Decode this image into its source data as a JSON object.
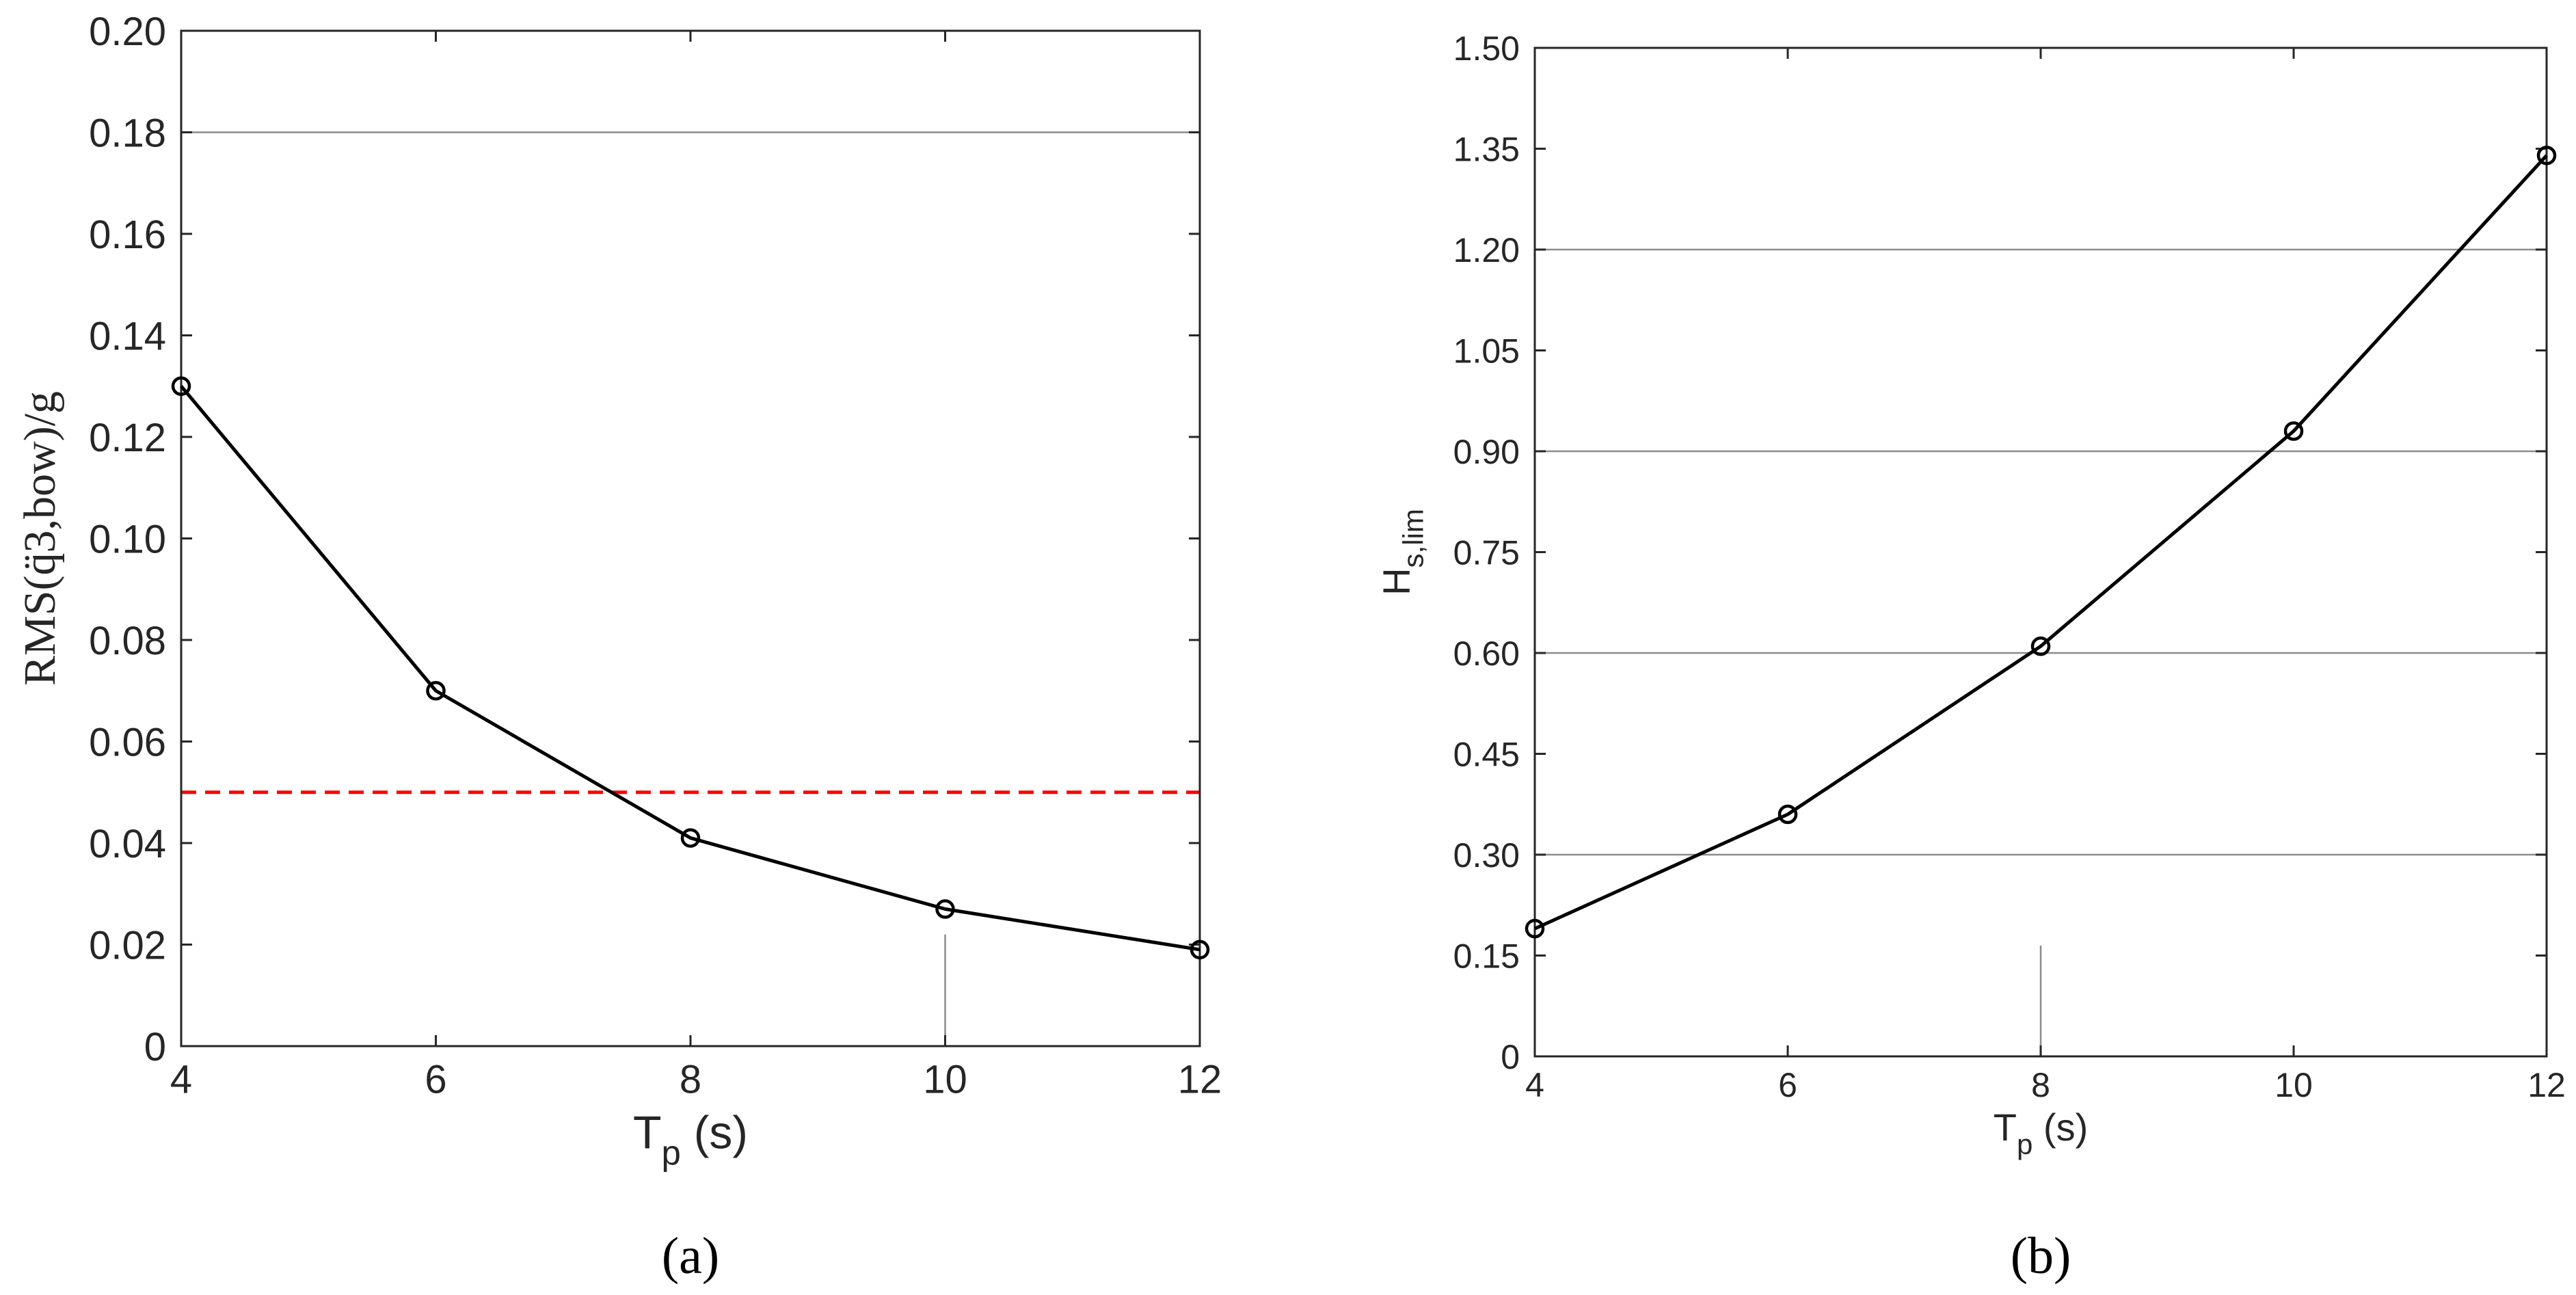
{
  "chart_data": [
    {
      "type": "line",
      "panel_label": "(a)",
      "xlabel_main": "T",
      "xlabel_sub": "p",
      "xlabel_unit": " (s)",
      "ylabel": "RMS(q̈3,bow)/g",
      "xlim": [
        4,
        12
      ],
      "ylim": [
        0,
        0.2
      ],
      "xticks": [
        "4",
        "6",
        "8",
        "10",
        "12"
      ],
      "yticks": [
        "0",
        "0.02",
        "0.04",
        "0.06",
        "0.08",
        "0.10",
        "0.12",
        "0.14",
        "0.16",
        "0.18",
        "0.20"
      ],
      "x": [
        4,
        6,
        8,
        10,
        12
      ],
      "values": [
        0.13,
        0.07,
        0.041,
        0.027,
        0.019
      ],
      "threshold": 0.05,
      "threshold_color": "#ff0000",
      "line_color": "#000000",
      "marker": "circle-open",
      "grid": "partial"
    },
    {
      "type": "line",
      "panel_label": "(b)",
      "xlabel_main": "T",
      "xlabel_sub": "p",
      "xlabel_unit": " (s)",
      "ylabel_main": "H",
      "ylabel_sub": "s,lim",
      "xlim": [
        4,
        12
      ],
      "ylim": [
        0,
        1.5
      ],
      "xticks": [
        "4",
        "6",
        "8",
        "10",
        "12"
      ],
      "yticks": [
        "0",
        "0.15",
        "0.30",
        "0.45",
        "0.60",
        "0.75",
        "0.90",
        "1.05",
        "1.20",
        "1.35",
        "1.50"
      ],
      "x": [
        4,
        6,
        8,
        10,
        12
      ],
      "values": [
        0.19,
        0.36,
        0.61,
        0.93,
        1.34
      ],
      "line_color": "#000000",
      "marker": "circle-open",
      "grid": "horizontal"
    }
  ]
}
